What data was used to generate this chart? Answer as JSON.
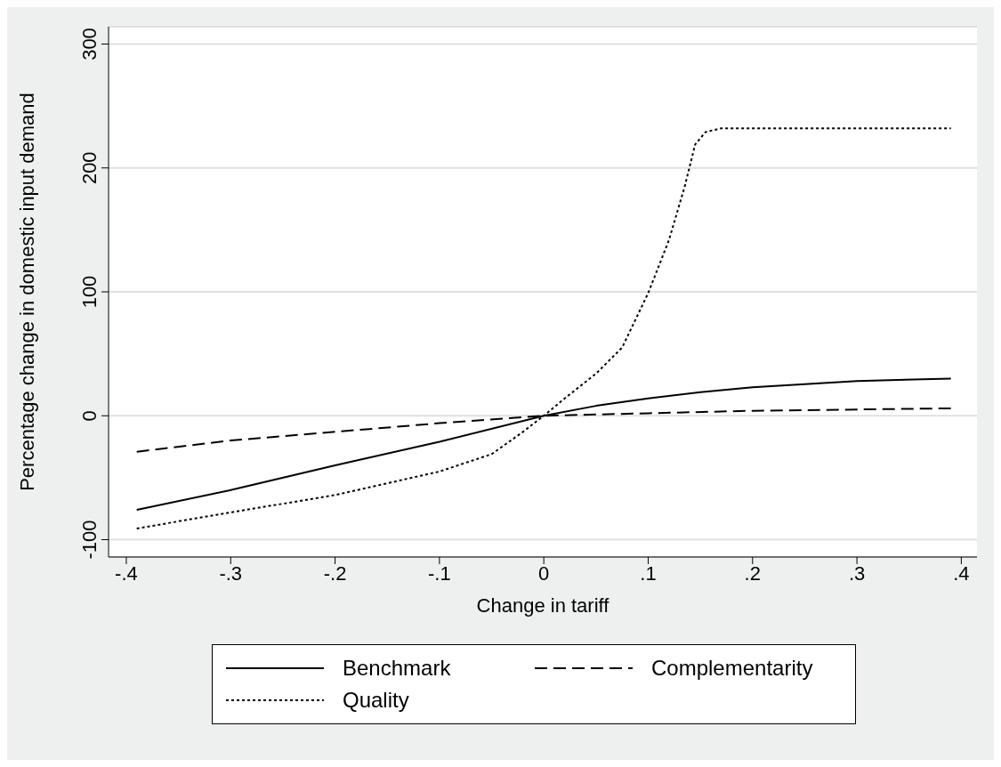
{
  "chart_data": {
    "type": "line",
    "xlabel": "Change in tariff",
    "ylabel": "Percentage change in domestic input demand",
    "xlim": [
      -0.417,
      0.415
    ],
    "ylim": [
      -114,
      314
    ],
    "xticks": [
      {
        "value": -0.4,
        "label": "-.4"
      },
      {
        "value": -0.3,
        "label": "-.3"
      },
      {
        "value": -0.2,
        "label": "-.2"
      },
      {
        "value": -0.1,
        "label": "-.1"
      },
      0,
      {
        "value": 0.1,
        "label": ".1"
      },
      {
        "value": 0.2,
        "label": ".2"
      },
      {
        "value": 0.3,
        "label": ".3"
      },
      {
        "value": 0.4,
        "label": ".4"
      }
    ],
    "yticks": [
      -100,
      0,
      100,
      200,
      300
    ],
    "grid": "y",
    "legend": "bottom",
    "marker": "none",
    "series": [
      {
        "name": "Benchmark",
        "color": "#000000",
        "line_style": "solid",
        "x": [
          -0.39,
          -0.3,
          -0.2,
          -0.1,
          0,
          0.05,
          0.1,
          0.15,
          0.2,
          0.3,
          0.39
        ],
        "values": [
          -76,
          -60,
          -40,
          -21,
          0,
          8,
          14,
          19,
          23,
          28,
          30
        ]
      },
      {
        "name": "Complementarity",
        "color": "#000000",
        "line_style": "dashed",
        "x": [
          -0.39,
          -0.3,
          -0.2,
          -0.1,
          0,
          0.1,
          0.2,
          0.39
        ],
        "values": [
          -29,
          -20,
          -13,
          -6,
          0,
          2,
          4,
          6
        ]
      },
      {
        "name": "Quality",
        "color": "#000000",
        "line_style": "dotted",
        "x": [
          -0.39,
          -0.3,
          -0.2,
          -0.1,
          -0.05,
          -0.02,
          0,
          0.02,
          0.05,
          0.075,
          0.1,
          0.12,
          0.135,
          0.145,
          0.155,
          0.17,
          0.39
        ],
        "values": [
          -91,
          -78,
          -64,
          -45,
          -31,
          -13,
          0,
          14,
          34,
          55,
          99,
          142,
          185,
          219,
          229,
          232,
          232
        ]
      }
    ]
  }
}
